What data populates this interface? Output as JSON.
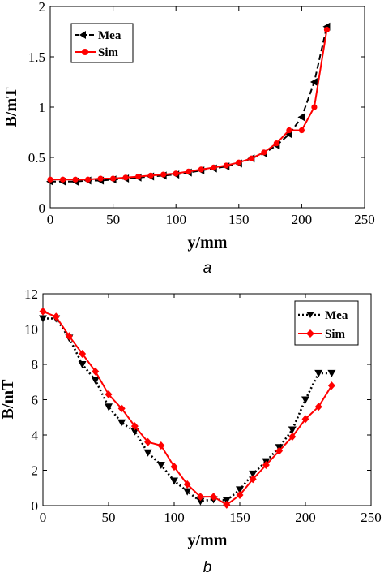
{
  "chart_data": [
    {
      "type": "line",
      "caption": "a",
      "xlabel": "y/mm",
      "ylabel": "B/mT",
      "xlim": [
        0,
        250
      ],
      "ylim": [
        0,
        2
      ],
      "xticks": [
        "0",
        "50",
        "100",
        "150",
        "200",
        "250"
      ],
      "yticks": [
        "0",
        "0.5",
        "1",
        "1.5",
        "2"
      ],
      "legend_position": "top-left",
      "grid": false,
      "series": [
        {
          "name": "Mea",
          "color": "#000000",
          "line_style": "dashed",
          "marker": "triangle-left",
          "x": [
            0,
            10,
            20,
            30,
            40,
            50,
            60,
            70,
            80,
            90,
            100,
            110,
            120,
            130,
            140,
            150,
            160,
            170,
            180,
            190,
            200,
            210,
            220
          ],
          "y": [
            0.26,
            0.26,
            0.26,
            0.27,
            0.27,
            0.28,
            0.29,
            0.3,
            0.31,
            0.32,
            0.33,
            0.35,
            0.37,
            0.39,
            0.41,
            0.44,
            0.49,
            0.54,
            0.62,
            0.73,
            0.9,
            1.25,
            1.8
          ]
        },
        {
          "name": "Sim",
          "color": "#ff0000",
          "line_style": "solid",
          "marker": "circle",
          "x": [
            0,
            10,
            20,
            30,
            40,
            50,
            60,
            70,
            80,
            90,
            100,
            110,
            120,
            130,
            140,
            150,
            160,
            170,
            180,
            190,
            200,
            210,
            220
          ],
          "y": [
            0.28,
            0.28,
            0.28,
            0.28,
            0.29,
            0.29,
            0.3,
            0.31,
            0.32,
            0.33,
            0.34,
            0.36,
            0.38,
            0.4,
            0.42,
            0.45,
            0.49,
            0.55,
            0.64,
            0.77,
            0.77,
            1.0,
            1.77
          ]
        }
      ]
    },
    {
      "type": "line",
      "caption": "b",
      "xlabel": "y/mm",
      "ylabel": "B/mT",
      "xlim": [
        0,
        250
      ],
      "ylim": [
        0,
        12
      ],
      "xticks": [
        "0",
        "50",
        "100",
        "150",
        "200",
        "250"
      ],
      "yticks": [
        "0",
        "2",
        "4",
        "6",
        "8",
        "10",
        "12"
      ],
      "legend_position": "top-right",
      "grid": false,
      "series": [
        {
          "name": "Mea",
          "color": "#000000",
          "line_style": "dotted",
          "marker": "triangle-down",
          "x": [
            0,
            10,
            20,
            30,
            40,
            50,
            60,
            70,
            80,
            90,
            100,
            110,
            120,
            130,
            140,
            150,
            160,
            170,
            180,
            190,
            200,
            210,
            220
          ],
          "y": [
            10.6,
            10.6,
            9.5,
            8.0,
            7.1,
            5.6,
            4.7,
            4.2,
            3.0,
            2.3,
            1.4,
            0.8,
            0.25,
            0.35,
            0.3,
            0.9,
            1.8,
            2.5,
            3.3,
            4.3,
            6.0,
            7.5,
            7.5
          ]
        },
        {
          "name": "Sim",
          "color": "#ff0000",
          "line_style": "solid",
          "marker": "diamond",
          "x": [
            0,
            10,
            20,
            30,
            40,
            50,
            60,
            70,
            80,
            90,
            100,
            110,
            120,
            130,
            140,
            150,
            160,
            170,
            180,
            190,
            200,
            210,
            220
          ],
          "y": [
            11.0,
            10.7,
            9.6,
            8.6,
            7.6,
            6.3,
            5.5,
            4.5,
            3.6,
            3.4,
            2.2,
            1.2,
            0.5,
            0.5,
            0.05,
            0.6,
            1.5,
            2.3,
            3.1,
            3.9,
            4.9,
            5.6,
            6.8
          ]
        }
      ]
    }
  ]
}
